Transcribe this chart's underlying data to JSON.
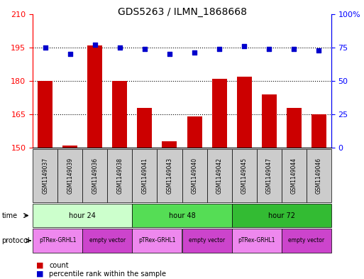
{
  "title": "GDS5263 / ILMN_1868668",
  "samples": [
    "GSM1149037",
    "GSM1149039",
    "GSM1149036",
    "GSM1149038",
    "GSM1149041",
    "GSM1149043",
    "GSM1149040",
    "GSM1149042",
    "GSM1149045",
    "GSM1149047",
    "GSM1149044",
    "GSM1149046"
  ],
  "counts": [
    180,
    151,
    196,
    180,
    168,
    153,
    164,
    181,
    182,
    174,
    168,
    165
  ],
  "percentile_ranks": [
    75,
    70,
    77,
    75,
    74,
    70,
    71,
    74,
    76,
    74,
    74,
    73
  ],
  "ylim_left": [
    150,
    210
  ],
  "ylim_right": [
    0,
    100
  ],
  "yticks_left": [
    150,
    165,
    180,
    195,
    210
  ],
  "yticks_right": [
    0,
    25,
    50,
    75,
    100
  ],
  "ytick_labels_left": [
    "150",
    "165",
    "180",
    "195",
    "210"
  ],
  "ytick_labels_right": [
    "0",
    "25",
    "50",
    "75",
    "100%"
  ],
  "bar_color": "#cc0000",
  "dot_color": "#0000cc",
  "grid_color": "#000000",
  "time_groups": [
    {
      "label": "hour 24",
      "start": 0,
      "end": 4,
      "color": "#ccffcc"
    },
    {
      "label": "hour 48",
      "start": 4,
      "end": 8,
      "color": "#55dd55"
    },
    {
      "label": "hour 72",
      "start": 8,
      "end": 12,
      "color": "#33bb33"
    }
  ],
  "protocol_groups": [
    {
      "label": "pTRex-GRHL1",
      "start": 0,
      "end": 2,
      "color": "#ee88ee"
    },
    {
      "label": "empty vector",
      "start": 2,
      "end": 4,
      "color": "#cc44cc"
    },
    {
      "label": "pTRex-GRHL1",
      "start": 4,
      "end": 6,
      "color": "#ee88ee"
    },
    {
      "label": "empty vector",
      "start": 6,
      "end": 8,
      "color": "#cc44cc"
    },
    {
      "label": "pTRex-GRHL1",
      "start": 8,
      "end": 10,
      "color": "#ee88ee"
    },
    {
      "label": "empty vector",
      "start": 10,
      "end": 12,
      "color": "#cc44cc"
    }
  ],
  "sample_box_color": "#cccccc",
  "background_color": "#ffffff",
  "dotted_line_values": [
    165,
    180,
    195
  ],
  "bar_width": 0.6
}
